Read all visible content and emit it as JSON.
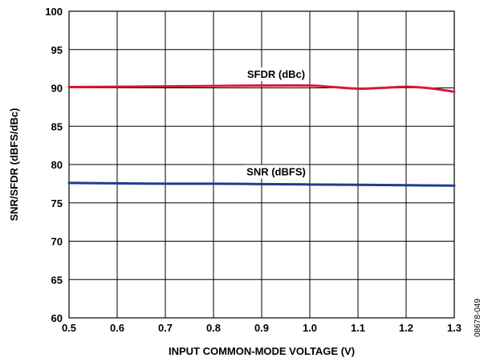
{
  "chart_data": {
    "type": "line",
    "xlabel": "INPUT COMMON-MODE VOLTAGE (V)",
    "ylabel": "SNR/SFDR (dBFS/dBc)",
    "xlim": [
      0.5,
      1.3
    ],
    "ylim": [
      60,
      100
    ],
    "x_ticks": [
      0.5,
      0.6,
      0.7,
      0.8,
      0.9,
      1.0,
      1.1,
      1.2,
      1.3
    ],
    "x_tick_labels": [
      "0.5",
      "0.6",
      "0.7",
      "0.8",
      "0.9",
      "1.0",
      "1.1",
      "1.2",
      "1.3"
    ],
    "y_ticks": [
      60,
      65,
      70,
      75,
      80,
      85,
      90,
      95,
      100
    ],
    "y_tick_labels": [
      "60",
      "65",
      "70",
      "75",
      "80",
      "85",
      "90",
      "95",
      "100"
    ],
    "grid": true,
    "series": [
      {
        "name": "SFDR (dBc)",
        "color": "#d7193d",
        "x": [
          0.5,
          0.6,
          0.7,
          0.8,
          0.9,
          1.0,
          1.05,
          1.1,
          1.15,
          1.2,
          1.25,
          1.3
        ],
        "values": [
          90.1,
          90.15,
          90.2,
          90.25,
          90.3,
          90.3,
          90.1,
          89.9,
          90.0,
          90.15,
          89.95,
          89.5
        ]
      },
      {
        "name": "SNR (dBFS)",
        "color": "#1c3f8c",
        "x": [
          0.5,
          0.6,
          0.7,
          0.8,
          0.9,
          1.0,
          1.1,
          1.2,
          1.3
        ],
        "values": [
          77.6,
          77.55,
          77.5,
          77.5,
          77.45,
          77.4,
          77.35,
          77.3,
          77.25
        ]
      }
    ],
    "series_labels": [
      {
        "text": "SFDR (dBc)",
        "x": 0.93,
        "y": 91.3
      },
      {
        "text": "SNR (dBFS)",
        "x": 0.93,
        "y": 78.6
      }
    ]
  },
  "figure_id": "08678-049"
}
